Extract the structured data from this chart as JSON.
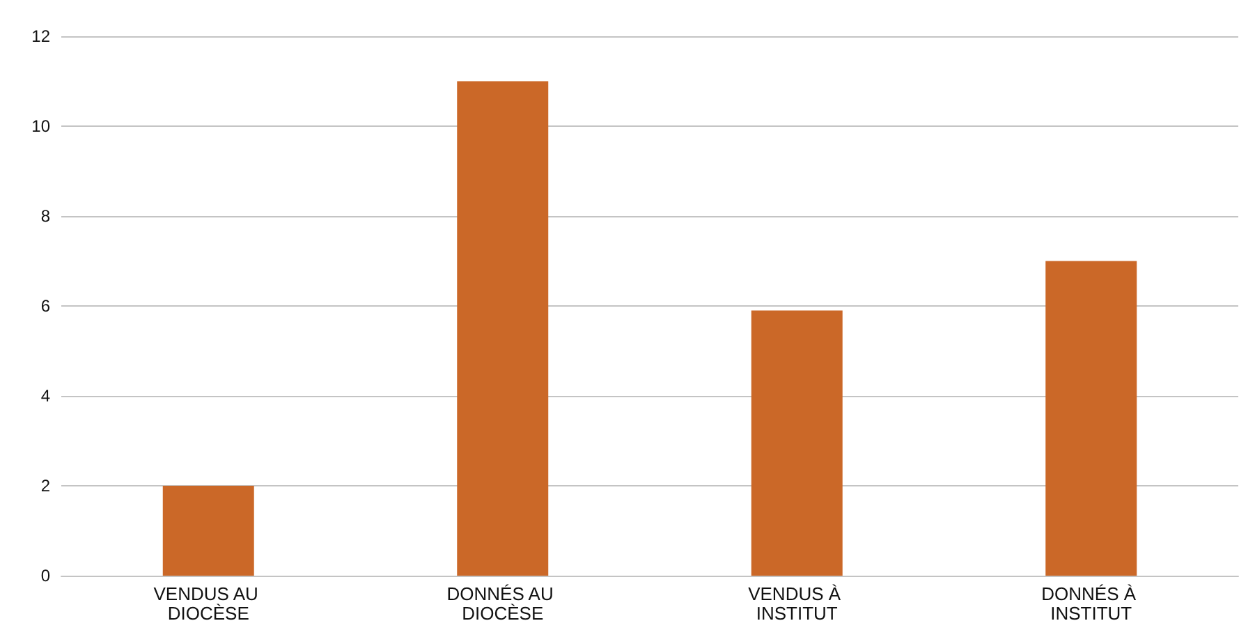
{
  "chart_data": {
    "type": "bar",
    "categories": [
      "VENDUS AU DIOCÈSE",
      "DONNÉS AU DIOCÈSE",
      "VENDUS À INSTITUT",
      "DONNÉS À INSTITUT"
    ],
    "values": [
      2,
      11,
      5.9,
      7
    ],
    "color": "#cb6828",
    "ylim": [
      0,
      12
    ],
    "yticks": [
      0,
      2,
      4,
      6,
      8,
      10,
      12
    ],
    "grid": "y"
  }
}
